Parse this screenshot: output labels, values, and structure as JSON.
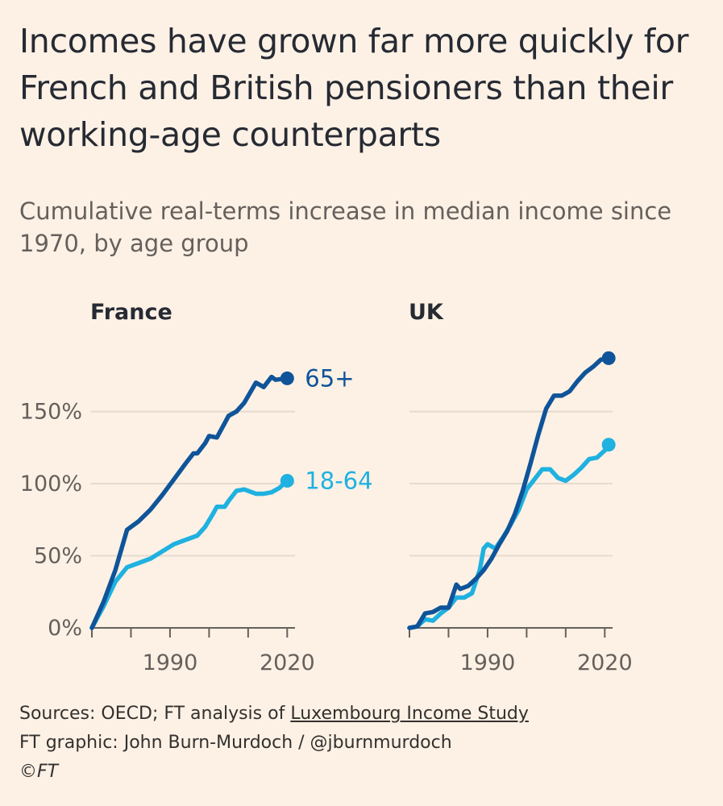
{
  "title": "Incomes have grown far more quickly for French and British pensioners than their working-age counterparts",
  "subtitle": "Cumulative real-terms increase in median income since 1970, by age group",
  "footer": {
    "sources_prefix": "Sources: OECD; FT analysis of ",
    "sources_link": "Luxembourg Income Study",
    "credit": "FT graphic: John Burn-Murdoch / @jburnmurdoch",
    "copyright": "©FT"
  },
  "colors": {
    "older": "#0f5499",
    "younger": "#1fb1e0",
    "axis": "#66605c",
    "grid": "#e6d9ce"
  },
  "chart_data": [
    {
      "type": "line",
      "title": "France",
      "xlabel": "",
      "ylabel": "",
      "xlim": [
        1970,
        2022
      ],
      "ylim": [
        0,
        190
      ],
      "yticks": [
        0,
        50,
        100,
        150
      ],
      "ytick_labels": [
        "0%",
        "50%",
        "100%",
        "150%"
      ],
      "xticks": [
        1990,
        2020
      ],
      "xtick_labels": [
        "1990",
        "2020"
      ],
      "series": [
        {
          "name": "65+",
          "x": [
            1970,
            1973,
            1976,
            1979,
            1982,
            1985,
            1988,
            1991,
            1994,
            1996,
            1997,
            1999,
            2000,
            2002,
            2004,
            2005,
            2007,
            2009,
            2012,
            2014,
            2016,
            2017,
            2020
          ],
          "values": [
            0,
            18,
            40,
            68,
            74,
            82,
            92,
            103,
            114,
            121,
            121,
            128,
            133,
            132,
            142,
            147,
            150,
            156,
            170,
            167,
            174,
            172,
            173
          ]
        },
        {
          "name": "18-64",
          "x": [
            1970,
            1973,
            1976,
            1979,
            1982,
            1985,
            1988,
            1991,
            1994,
            1997,
            1999,
            2001,
            2002,
            2004,
            2005,
            2007,
            2009,
            2012,
            2014,
            2016,
            2018,
            2020
          ],
          "values": [
            0,
            15,
            32,
            42,
            45,
            48,
            53,
            58,
            61,
            64,
            70,
            79,
            84,
            84,
            88,
            95,
            96,
            93,
            93,
            94,
            97,
            102
          ]
        }
      ]
    },
    {
      "type": "line",
      "title": "UK",
      "xlabel": "",
      "ylabel": "",
      "xlim": [
        1970,
        2022
      ],
      "ylim": [
        0,
        190
      ],
      "yticks": [
        0,
        50,
        100,
        150
      ],
      "ytick_labels": [
        "0%",
        "50%",
        "100%",
        "150%"
      ],
      "xticks": [
        1990,
        2020
      ],
      "xtick_labels": [
        "1990",
        "2020"
      ],
      "series": [
        {
          "name": "65+",
          "x": [
            1970,
            1972,
            1974,
            1976,
            1978,
            1980,
            1982,
            1983,
            1985,
            1987,
            1989,
            1991,
            1993,
            1995,
            1997,
            1999,
            2001,
            2003,
            2005,
            2007,
            2009,
            2011,
            2013,
            2015,
            2017,
            2019,
            2021
          ],
          "values": [
            0,
            1,
            10,
            11,
            14,
            14,
            30,
            27,
            29,
            34,
            40,
            48,
            58,
            67,
            79,
            95,
            114,
            134,
            152,
            161,
            161,
            164,
            171,
            177,
            181,
            186,
            187
          ]
        },
        {
          "name": "18-64",
          "x": [
            1970,
            1972,
            1974,
            1976,
            1978,
            1980,
            1982,
            1984,
            1986,
            1988,
            1989,
            1990,
            1992,
            1994,
            1996,
            1998,
            2000,
            2002,
            2004,
            2006,
            2008,
            2010,
            2012,
            2014,
            2016,
            2018,
            2020,
            2021
          ],
          "values": [
            0,
            1,
            6,
            5,
            10,
            14,
            21,
            21,
            24,
            40,
            55,
            58,
            55,
            63,
            72,
            82,
            96,
            103,
            110,
            110,
            104,
            102,
            106,
            111,
            117,
            118,
            123,
            127
          ]
        }
      ]
    }
  ]
}
